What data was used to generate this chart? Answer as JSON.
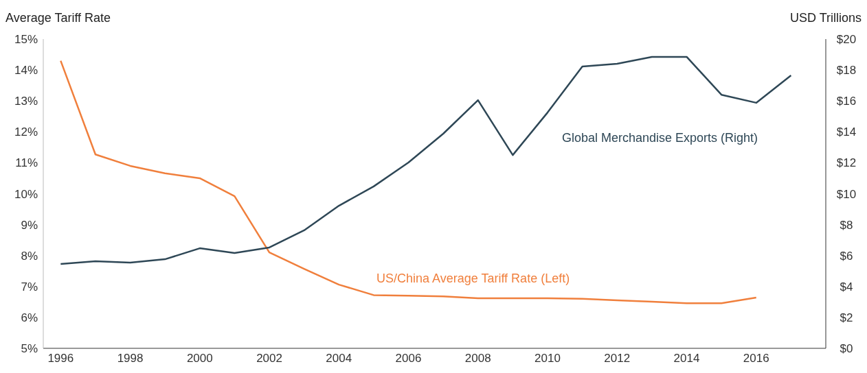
{
  "chart_data": {
    "type": "line",
    "ylabel": "Average Tariff Rate",
    "y2label": "USD Trillions",
    "x": [
      1996,
      1997,
      1998,
      1999,
      2000,
      2001,
      2002,
      2003,
      2004,
      2005,
      2006,
      2007,
      2008,
      2009,
      2010,
      2011,
      2012,
      2013,
      2014,
      2015,
      2016,
      2017
    ],
    "xlim": [
      1995.5,
      2018
    ],
    "xticks": [
      1996,
      1998,
      2000,
      2002,
      2004,
      2006,
      2008,
      2010,
      2012,
      2014,
      2016
    ],
    "ylim": [
      5,
      15
    ],
    "yticks": [
      {
        "value": 5,
        "label": "5%"
      },
      {
        "value": 6,
        "label": "6%"
      },
      {
        "value": 7,
        "label": "7%"
      },
      {
        "value": 8,
        "label": "8%"
      },
      {
        "value": 9,
        "label": "9%"
      },
      {
        "value": 10,
        "label": "10%"
      },
      {
        "value": 11,
        "label": "11%"
      },
      {
        "value": 12,
        "label": "12%"
      },
      {
        "value": 13,
        "label": "13%"
      },
      {
        "value": 14,
        "label": "14%"
      },
      {
        "value": 15,
        "label": "15%"
      }
    ],
    "y2lim": [
      0,
      20
    ],
    "y2ticks": [
      {
        "value": 0,
        "label": "$0"
      },
      {
        "value": 2,
        "label": "$2"
      },
      {
        "value": 4,
        "label": "$4"
      },
      {
        "value": 6,
        "label": "$6"
      },
      {
        "value": 8,
        "label": "$8"
      },
      {
        "value": 10,
        "label": "$10"
      },
      {
        "value": 12,
        "label": "$12"
      },
      {
        "value": 14,
        "label": "$14"
      },
      {
        "value": 16,
        "label": "$16"
      },
      {
        "value": 18,
        "label": "$18"
      },
      {
        "value": 20,
        "label": "$20"
      }
    ],
    "series": [
      {
        "name": "US/China Average Tariff Rate (Left)",
        "color": "#f07f3c",
        "values": [
          14.3,
          11.27,
          10.9,
          10.66,
          10.5,
          9.92,
          8.1,
          7.57,
          7.06,
          6.72,
          6.7,
          6.68,
          6.62,
          6.62,
          6.62,
          6.6,
          6.55,
          6.51,
          6.46,
          6.46,
          6.64,
          null
        ]
      },
      {
        "name": "Global Merchandise Exports (Right)",
        "color": "#2e4756",
        "axis": "y2",
        "values": [
          5.45,
          5.63,
          5.54,
          5.76,
          6.47,
          6.16,
          6.52,
          7.63,
          9.22,
          10.47,
          12.02,
          13.88,
          16.05,
          12.5,
          15.25,
          18.23,
          18.4,
          18.85,
          18.85,
          16.4,
          15.88,
          17.65
        ]
      }
    ],
    "marker": "none",
    "line_style": "solid"
  }
}
